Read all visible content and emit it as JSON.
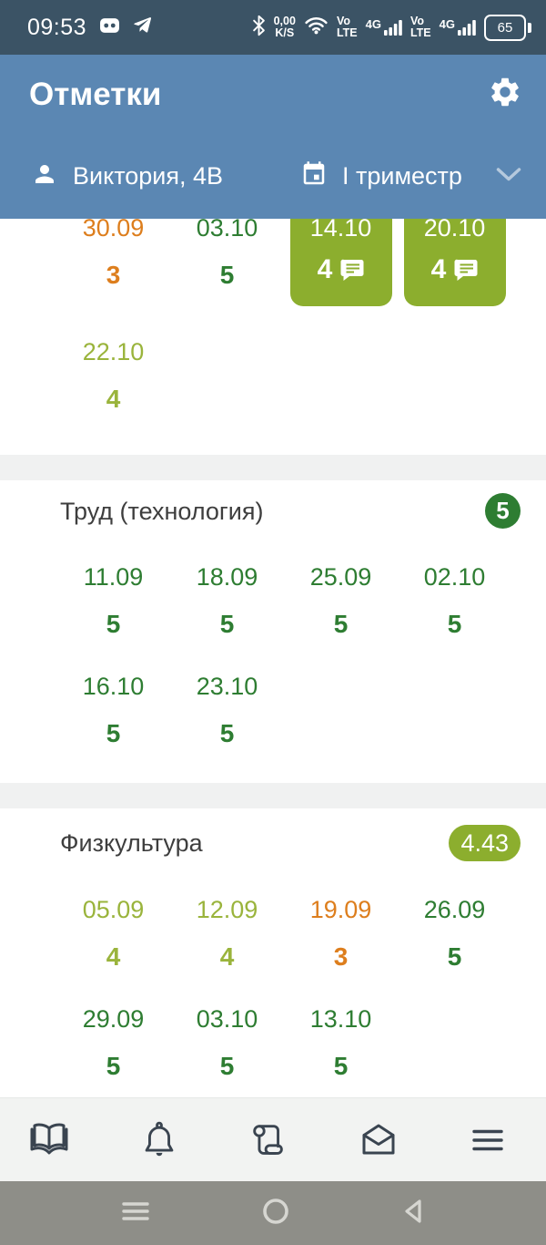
{
  "colors": {
    "status_bar_bg": "#3b5365",
    "header_bg": "#5b87b3",
    "olive": "#8cae2e",
    "olive_text": "#9ab43c",
    "dark_green": "#2e7d32",
    "orange": "#dd7e1d",
    "separator": "#f0f1f1",
    "nav_bg": "#f2f3f2",
    "nav_icon": "#3a4450",
    "android_bg": "#8e8e88",
    "android_icon": "#d6d6d1",
    "title_text": "#3e3e3e"
  },
  "status_bar": {
    "time": "09:53",
    "left_icons": [
      "mask-app-icon",
      "telegram-icon"
    ],
    "speed_value": "0,00",
    "speed_unit": "K/S",
    "sim1_volte": "Vo LTE",
    "sim1_net": "4G",
    "sim2_volte": "Vo LTE",
    "sim2_net": "4G",
    "battery_percent": "65",
    "right_icons": [
      "bluetooth-icon",
      "wifi-icon",
      "signal-bars-icon",
      "battery-icon"
    ]
  },
  "header": {
    "title": "Отметки",
    "student": "Виктория, 4В",
    "period": "I триместр",
    "icons": [
      "gear-icon",
      "person-icon",
      "calendar-icon",
      "chevron-down-icon"
    ]
  },
  "sections": [
    {
      "partial": true,
      "rows": [
        [
          {
            "date": "30.09",
            "mark": "3",
            "style": "orange"
          },
          {
            "date": "03.10",
            "mark": "5",
            "style": "darkgreen"
          },
          {
            "date": "14.10",
            "mark": "4",
            "style": "card",
            "comment": true
          },
          {
            "date": "20.10",
            "mark": "4",
            "style": "card",
            "comment": true
          }
        ],
        [
          {
            "date": "22.10",
            "mark": "4",
            "style": "olive"
          }
        ]
      ]
    },
    {
      "title": "Труд (технология)",
      "average": {
        "value": "5",
        "style": "circle"
      },
      "rows": [
        [
          {
            "date": "11.09",
            "mark": "5",
            "style": "darkgreen"
          },
          {
            "date": "18.09",
            "mark": "5",
            "style": "darkgreen"
          },
          {
            "date": "25.09",
            "mark": "5",
            "style": "darkgreen"
          },
          {
            "date": "02.10",
            "mark": "5",
            "style": "darkgreen"
          }
        ],
        [
          {
            "date": "16.10",
            "mark": "5",
            "style": "darkgreen"
          },
          {
            "date": "23.10",
            "mark": "5",
            "style": "darkgreen"
          }
        ]
      ]
    },
    {
      "title": "Физкультура",
      "average": {
        "value": "4.43",
        "style": "pill"
      },
      "rows": [
        [
          {
            "date": "05.09",
            "mark": "4",
            "style": "olive"
          },
          {
            "date": "12.09",
            "mark": "4",
            "style": "olive"
          },
          {
            "date": "19.09",
            "mark": "3",
            "style": "orange"
          },
          {
            "date": "26.09",
            "mark": "5",
            "style": "darkgreen"
          }
        ],
        [
          {
            "date": "29.09",
            "mark": "5",
            "style": "darkgreen"
          },
          {
            "date": "03.10",
            "mark": "5",
            "style": "darkgreen"
          },
          {
            "date": "13.10",
            "mark": "5",
            "style": "darkgreen"
          }
        ]
      ]
    }
  ],
  "bottom_nav": {
    "icons": [
      "book-icon",
      "bell-icon",
      "scroll-icon",
      "envelope-icon",
      "menu-icon"
    ]
  },
  "android_nav": {
    "icons": [
      "recents-icon",
      "home-icon",
      "back-icon"
    ]
  }
}
